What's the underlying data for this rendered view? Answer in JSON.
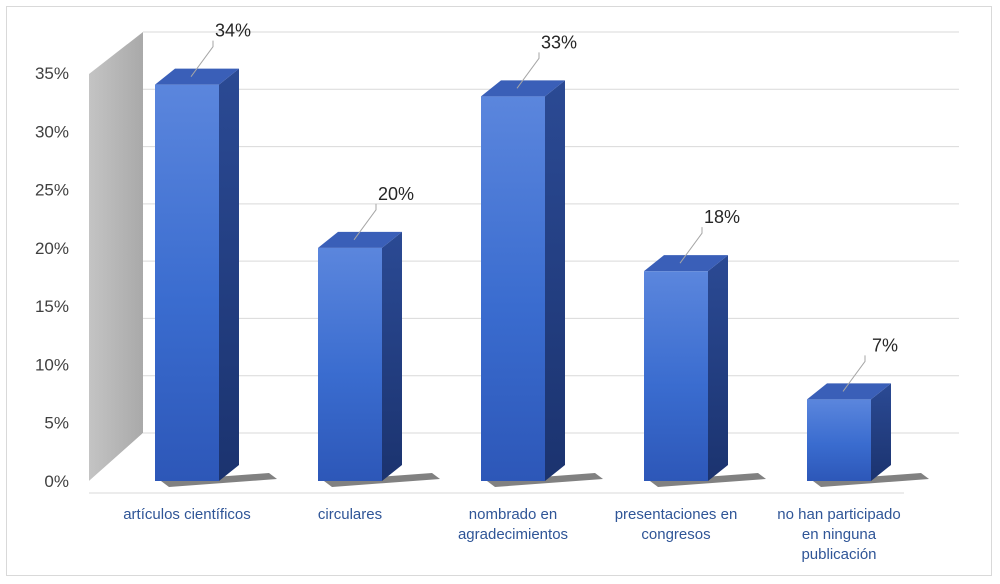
{
  "chart_data": {
    "type": "bar",
    "title": "",
    "xlabel": "",
    "ylabel": "",
    "categories": [
      "artículos científicos",
      "circulares",
      "nombrado en agradecimientos",
      "presentaciones en congresos",
      "no han participado en ninguna publicación"
    ],
    "category_lines": [
      [
        "artículos científicos"
      ],
      [
        "circulares"
      ],
      [
        "nombrado en",
        "agradecimientos"
      ],
      [
        "presentaciones en",
        "congresos"
      ],
      [
        "no han participado",
        "en ninguna",
        "publicación"
      ]
    ],
    "values": [
      34,
      20,
      33,
      18,
      7
    ],
    "data_labels": [
      "34%",
      "20%",
      "33%",
      "18%",
      "7%"
    ],
    "yticks": [
      0,
      5,
      10,
      15,
      20,
      25,
      30,
      35
    ],
    "ytick_labels": [
      "0%",
      "5%",
      "10%",
      "15%",
      "20%",
      "25%",
      "30%",
      "35%"
    ],
    "ylim": [
      0,
      35
    ],
    "grid": true,
    "legend": "none",
    "colors": {
      "bar_front": "#3f6fd0",
      "bar_side": "#22408a",
      "bar_top": "#3a5fb8",
      "back_wall": "#b8b8b8",
      "gridline": "#d9d9d9",
      "category_text": "#2f5597"
    }
  }
}
